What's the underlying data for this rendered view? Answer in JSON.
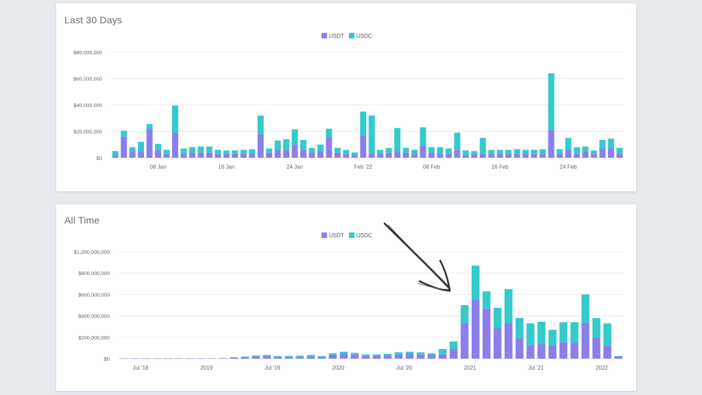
{
  "colors": {
    "usdt": "#8b80ea",
    "usdc": "#33cbcb",
    "grid": "#e8e8e8",
    "axis_text": "#666666"
  },
  "panels": {
    "top": {
      "title": "Last 30 Days"
    },
    "bottom": {
      "title": "All Time"
    }
  },
  "annotation": {
    "type": "arrow-icon"
  },
  "chart_data": [
    {
      "type": "bar",
      "stacked": true,
      "title": "Last 30 Days",
      "legend": [
        "USDT",
        "USDC"
      ],
      "legend_position": "top-center",
      "ylim": [
        0,
        80000000
      ],
      "y_ticks": [
        0,
        20000000,
        40000000,
        60000000,
        80000000
      ],
      "y_tick_labels": [
        "$0",
        "$20,000,000",
        "$40,000,000",
        "$60,000,000",
        "$80,000,000"
      ],
      "x_tick_labels": [
        "08 Jan",
        "16 Jan",
        "24 Jan",
        "Feb '22",
        "08 Feb",
        "16 Feb",
        "24 Feb"
      ],
      "x_tick_indices": [
        5,
        13,
        21,
        29,
        37,
        45,
        53
      ],
      "grid": true,
      "series": [
        {
          "name": "USDT",
          "values": [
            2000000,
            16000000,
            5000000,
            5000000,
            22000000,
            6000000,
            3000000,
            19000000,
            3000000,
            4000000,
            4000000,
            4000000,
            3000000,
            3000000,
            3000000,
            3000000,
            3000000,
            18000000,
            4000000,
            6000000,
            6000000,
            10000000,
            6000000,
            4000000,
            5000000,
            16000000,
            4000000,
            3000000,
            2000000,
            17000000,
            3000000,
            3000000,
            4000000,
            5000000,
            4000000,
            3000000,
            9000000,
            4000000,
            3000000,
            3000000,
            6000000,
            2000000,
            3000000,
            3000000,
            3000000,
            3000000,
            3000000,
            3000000,
            3000000,
            3000000,
            3000000,
            21000000,
            3000000,
            6000000,
            3000000,
            5000000,
            3000000,
            7000000,
            7000000,
            3000000
          ]
        },
        {
          "name": "USDC",
          "values": [
            3000000,
            4500000,
            3000000,
            7000000,
            3500000,
            4500000,
            3000000,
            20500000,
            4000000,
            4000000,
            4500000,
            4500000,
            3000000,
            2500000,
            2500000,
            3000000,
            3500000,
            14000000,
            3000000,
            7000000,
            8000000,
            11500000,
            7500000,
            3500000,
            5000000,
            6000000,
            3500000,
            3000000,
            2000000,
            18000000,
            29000000,
            3000000,
            3500000,
            17500000,
            3500000,
            3000000,
            14000000,
            4000000,
            5000000,
            4000000,
            13000000,
            3500000,
            2000000,
            12000000,
            3000000,
            3000000,
            3000000,
            3500000,
            3000000,
            3000000,
            3500000,
            43000000,
            3500000,
            9000000,
            5000000,
            3500000,
            2500000,
            6500000,
            7500000,
            4500000
          ]
        }
      ]
    },
    {
      "type": "bar",
      "stacked": true,
      "title": "All Time",
      "legend": [
        "USDT",
        "USDC"
      ],
      "legend_position": "top-center",
      "ylim": [
        0,
        1000000000
      ],
      "y_ticks": [
        0,
        200000000,
        400000000,
        600000000,
        800000000,
        1000000000
      ],
      "y_tick_labels": [
        "$0",
        "$200,000,000",
        "$400,000,000",
        "$600,000,000",
        "$800,000,000",
        "$1,000,000,000"
      ],
      "x_tick_labels": [
        "Jul '18",
        "2019",
        "Jul '19",
        "2020",
        "Jul '20",
        "2021",
        "Jul '21",
        "2022"
      ],
      "x_tick_indices": [
        1.5,
        7.5,
        13.5,
        19.5,
        25.5,
        31.5,
        37.5,
        43.5
      ],
      "grid": true,
      "series": [
        {
          "name": "USDT",
          "values": [
            3000000,
            3000000,
            3000000,
            3000000,
            3000000,
            4000000,
            3000000,
            3000000,
            4000000,
            5000000,
            10000000,
            15000000,
            20000000,
            25000000,
            15000000,
            15000000,
            18000000,
            20000000,
            15000000,
            35000000,
            45000000,
            40000000,
            25000000,
            30000000,
            30000000,
            40000000,
            50000000,
            40000000,
            35000000,
            40000000,
            90000000,
            335000000,
            555000000,
            470000000,
            285000000,
            330000000,
            190000000,
            130000000,
            135000000,
            125000000,
            155000000,
            150000000,
            335000000,
            200000000,
            120000000,
            20000000
          ]
        },
        {
          "name": "USDC",
          "values": [
            0,
            0,
            0,
            0,
            0,
            0,
            0,
            0,
            0,
            0,
            3000000,
            5000000,
            10000000,
            10000000,
            10000000,
            10000000,
            10000000,
            15000000,
            10000000,
            15000000,
            20000000,
            15000000,
            15000000,
            10000000,
            15000000,
            20000000,
            15000000,
            20000000,
            15000000,
            50000000,
            70000000,
            165000000,
            315000000,
            160000000,
            190000000,
            320000000,
            190000000,
            200000000,
            210000000,
            145000000,
            185000000,
            190000000,
            265000000,
            180000000,
            210000000,
            5000000
          ]
        }
      ]
    }
  ]
}
